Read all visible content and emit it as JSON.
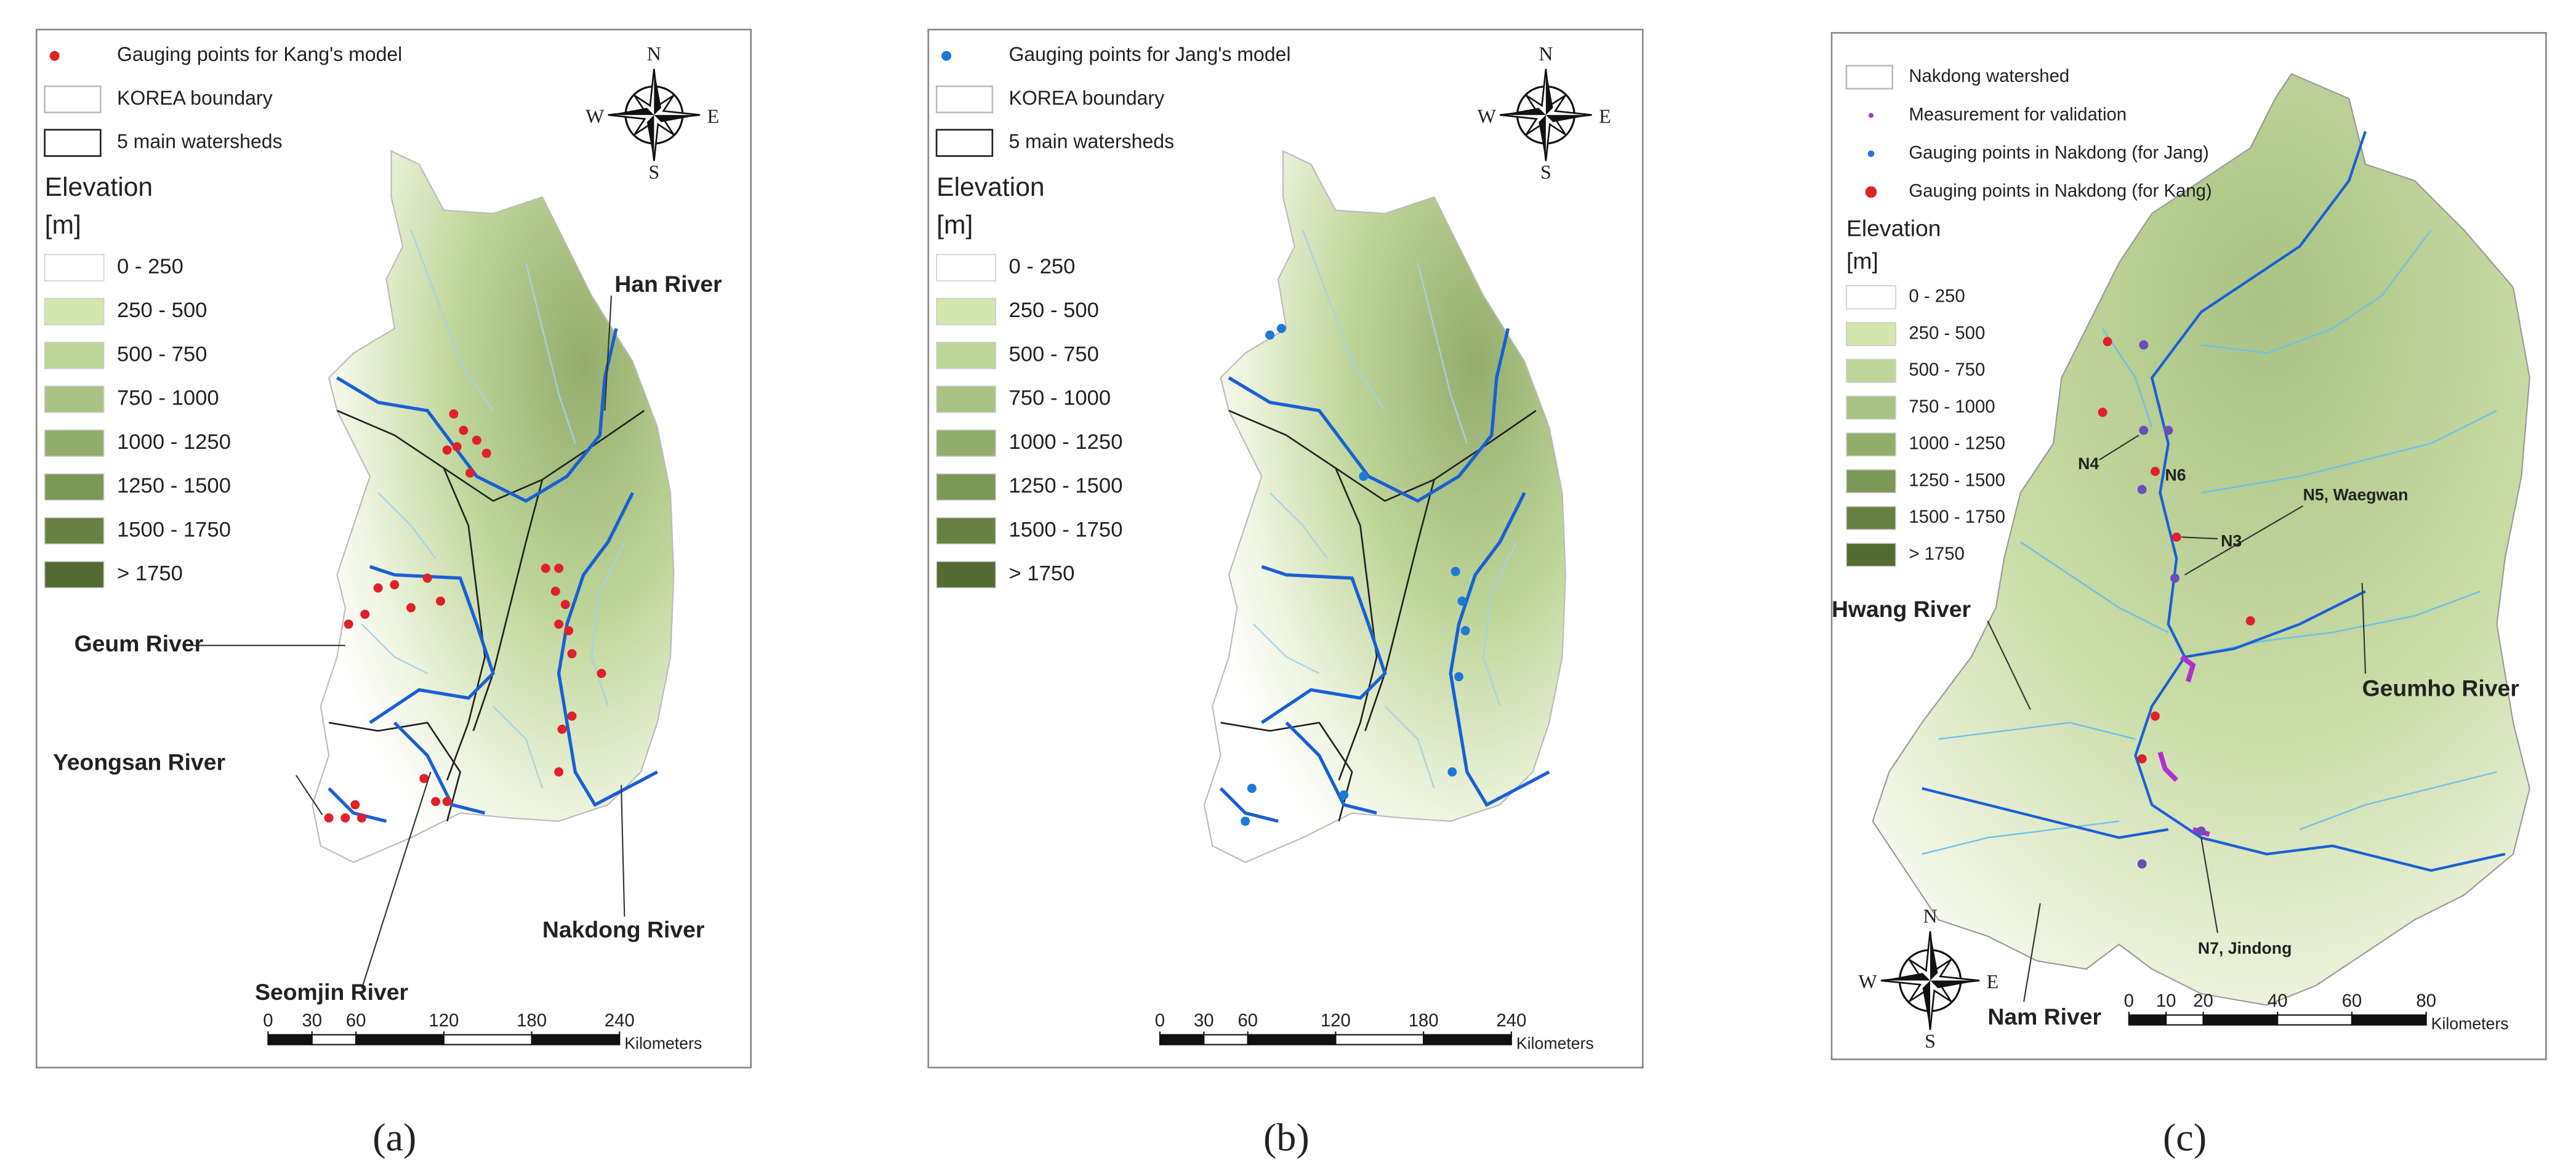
{
  "panels": [
    {
      "label": "(a)",
      "legend": {
        "items": [
          "Gauging points for Kang's model",
          "KOREA boundary",
          "5 main watersheds"
        ],
        "elevation_title": "Elevation",
        "unit": "[m]",
        "classes": [
          "0 - 250",
          "250 - 500",
          "500 - 750",
          "750 - 1000",
          "1000 - 1250",
          "1250 - 1500",
          "1500 - 1750",
          "> 1750"
        ]
      },
      "compass": {
        "n": "N",
        "e": "E",
        "s": "S",
        "w": "W"
      },
      "labels": [
        "Han River",
        "Geum River",
        "Yeongsan River",
        "Seomjin River",
        "Nakdong River"
      ],
      "scale": {
        "ticks": [
          0,
          30,
          60,
          120,
          180,
          240
        ],
        "unit": "Kilometers"
      }
    },
    {
      "label": "(b)",
      "legend": {
        "items": [
          "Gauging points for Jang's model",
          "KOREA boundary",
          "5 main watersheds"
        ],
        "elevation_title": "Elevation",
        "unit": "[m]",
        "classes": [
          "0 - 250",
          "250 - 500",
          "500 - 750",
          "750 - 1000",
          "1000 - 1250",
          "1250 - 1500",
          "1500 - 1750",
          "> 1750"
        ]
      },
      "compass": {
        "n": "N",
        "e": "E",
        "s": "S",
        "w": "W"
      },
      "labels": [],
      "scale": {
        "ticks": [
          0,
          30,
          60,
          120,
          180,
          240
        ],
        "unit": "Kilometers"
      }
    },
    {
      "label": "(c)",
      "legend": {
        "items": [
          "Nakdong watershed",
          "Measurement for validation",
          "Gauging points in Nakdong (for Jang)",
          "Gauging points in Nakdong (for Kang)"
        ],
        "elevation_title": "Elevation",
        "unit": "[m]",
        "classes": [
          "0 - 250",
          "250 - 500",
          "500 - 750",
          "750 - 1000",
          "1000 - 1250",
          "1250 - 1500",
          "1500 - 1750",
          "> 1750"
        ]
      },
      "compass": {
        "n": "N",
        "e": "E",
        "s": "S",
        "w": "W"
      },
      "labels": [
        "N4",
        "N6",
        "N5, Waegwan",
        "N3",
        "Hwang River",
        "Geumho River",
        "Nam River",
        "N7, Jindong"
      ],
      "scale": {
        "ticks": [
          0,
          10,
          20,
          40,
          60,
          80
        ],
        "unit": "Kilometers"
      }
    }
  ]
}
